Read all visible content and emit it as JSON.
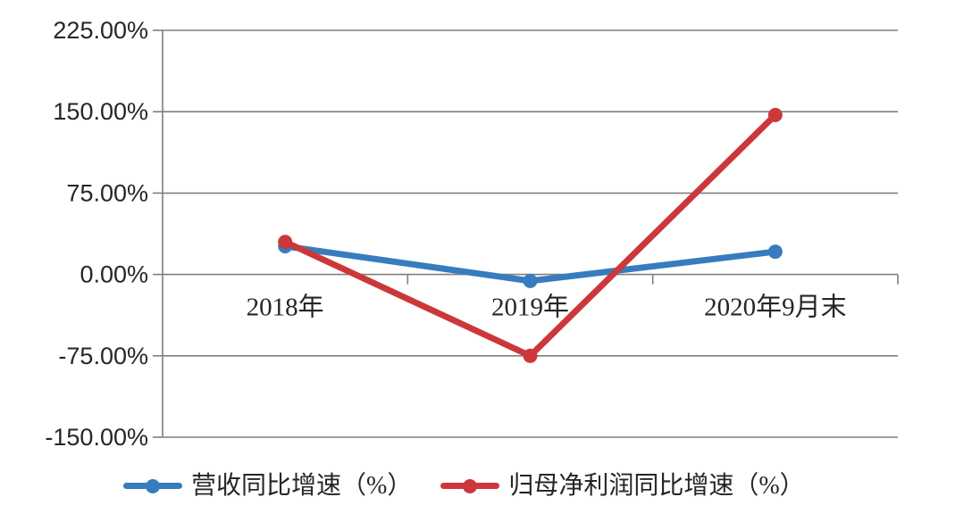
{
  "chart_data": {
    "type": "line",
    "categories": [
      "2018年",
      "2019年",
      "2020年9月末"
    ],
    "series": [
      {
        "name": "营收同比增速（%）",
        "values": [
          26,
          -6,
          21
        ],
        "color": "#367CBE"
      },
      {
        "name": "归母净利润同比增速（%）",
        "values": [
          30,
          -75,
          147
        ],
        "color": "#CC383A"
      }
    ],
    "ylim": [
      -150,
      225
    ],
    "ytick_step": 75,
    "ytick_labels": [
      "225.00%",
      "150.00%",
      "75.00%",
      "0.00%",
      "-75.00%",
      "-150.00%"
    ],
    "xlabel": "",
    "ylabel": "",
    "title": "",
    "grid": true,
    "legend_position": "bottom",
    "marker": "circle"
  },
  "colors": {
    "grid": "#7F7F7F",
    "axis": "#7F7F7F",
    "text": "#262626",
    "background": "#FFFFFF"
  }
}
